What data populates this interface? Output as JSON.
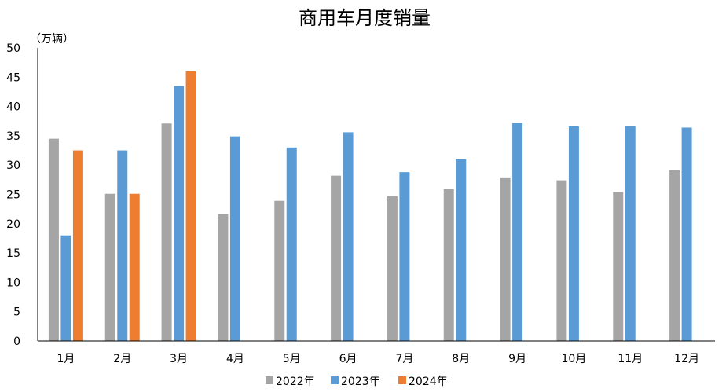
{
  "chart_data": {
    "type": "bar",
    "title": "商用车月度销量",
    "unit_label": "（万辆）",
    "categories": [
      "1月",
      "2月",
      "3月",
      "4月",
      "5月",
      "6月",
      "7月",
      "8月",
      "9月",
      "10月",
      "11月",
      "12月"
    ],
    "ylim": [
      0,
      50
    ],
    "yticks": [
      0,
      5,
      10,
      15,
      20,
      25,
      30,
      35,
      40,
      45,
      50
    ],
    "grid": false,
    "legend_position": "bottom",
    "series": [
      {
        "name": "2022年",
        "color": "#a5a5a5",
        "values": [
          34.5,
          25.1,
          37.1,
          21.6,
          23.9,
          28.2,
          24.7,
          25.9,
          27.9,
          27.4,
          25.4,
          29.1
        ]
      },
      {
        "name": "2023年",
        "color": "#5b9bd5",
        "values": [
          18.0,
          32.5,
          43.5,
          34.9,
          33.0,
          35.6,
          28.8,
          31.0,
          37.2,
          36.6,
          36.7,
          36.4
        ]
      },
      {
        "name": "2024年",
        "color": "#ed7d31",
        "values": [
          32.5,
          25.1,
          46.0,
          null,
          null,
          null,
          null,
          null,
          null,
          null,
          null,
          null
        ]
      }
    ]
  }
}
